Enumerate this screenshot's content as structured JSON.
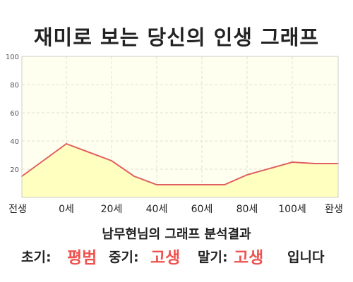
{
  "header": {
    "title": "재미로 보는 당신의 인생 그래프"
  },
  "chart_data": {
    "type": "area",
    "x_labels": [
      "전생",
      "0세",
      "20세",
      "40세",
      "60세",
      "80세",
      "100세",
      "환생"
    ],
    "y_ticks": [
      "100",
      "80",
      "60",
      "40",
      "20"
    ],
    "ylim": [
      0,
      100
    ],
    "grid": true,
    "points": [
      {
        "x": "전생",
        "y": 15
      },
      {
        "x": "0세",
        "y": 38
      },
      {
        "x": "20세",
        "y": 26
      },
      {
        "x": "30세",
        "y": 15
      },
      {
        "x": "40세",
        "y": 9
      },
      {
        "x": "60세",
        "y": 9
      },
      {
        "x": "70세",
        "y": 9
      },
      {
        "x": "80세",
        "y": 16
      },
      {
        "x": "100세",
        "y": 25
      },
      {
        "x": "110세",
        "y": 24
      },
      {
        "x": "환생",
        "y": 24
      }
    ],
    "colors": {
      "line": "#e06060",
      "fill": "#ffffc0",
      "plot_bg": "#fffff0",
      "grid": "#e0e0d0"
    }
  },
  "result": {
    "subtitle": "남무현님의 그래프 분석결과",
    "early_label": "초기:",
    "early_value": "평범",
    "mid_label": "중기:",
    "mid_value": "고생",
    "late_label": "말기:",
    "late_value": "고생",
    "ending": "입니다"
  }
}
